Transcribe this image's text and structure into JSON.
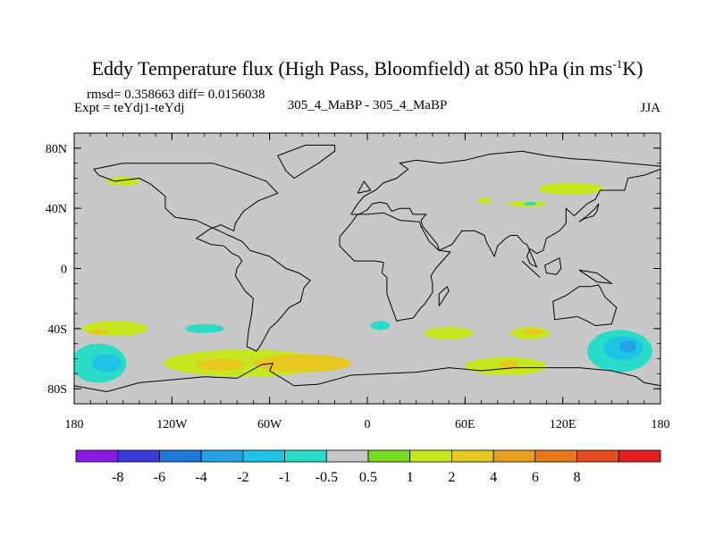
{
  "chart_data": {
    "type": "heatmap",
    "title": "Eddy Temperature flux (High Pass, Bloomfield) at 850 hPa (in ms",
    "title_sup": "-1",
    "title_end": "K)",
    "stats": "rmsd= 0.358663 diff= 0.0156038",
    "expt": "Expt = teYdj1-teYdj",
    "center_label": "305_4_MaBP - 305_4_MaBP",
    "season": "JJA",
    "x_range": [
      -180,
      180
    ],
    "y_range": [
      -90,
      90
    ],
    "x_ticks": [
      {
        "value": -180,
        "label": "180"
      },
      {
        "value": -120,
        "label": "120W"
      },
      {
        "value": -60,
        "label": "60W"
      },
      {
        "value": 0,
        "label": "0"
      },
      {
        "value": 60,
        "label": "60E"
      },
      {
        "value": 120,
        "label": "120E"
      },
      {
        "value": 180,
        "label": "180"
      }
    ],
    "y_ticks": [
      {
        "value": 80,
        "label": "80N"
      },
      {
        "value": 40,
        "label": "40N"
      },
      {
        "value": 0,
        "label": "0"
      },
      {
        "value": -40,
        "label": "40S"
      },
      {
        "value": -80,
        "label": "80S"
      }
    ],
    "colorbar": {
      "colors": [
        "#8b1ae6",
        "#3c3cdc",
        "#1e78dc",
        "#28a0e6",
        "#1ec3e6",
        "#28dcc8",
        "#c8c8c8",
        "#78dc1e",
        "#c8e61e",
        "#e6c81e",
        "#e6a01e",
        "#e6781e",
        "#e64b1e",
        "#e61e1e"
      ],
      "labels": [
        "-8",
        "-6",
        "-4",
        "-2",
        "-1",
        "-0.5",
        "0.5",
        "1",
        "2",
        "4",
        "6",
        "8"
      ]
    },
    "anomaly_regions": [
      {
        "lon": -150,
        "lat": 58,
        "rlon": 10,
        "rlat": 3,
        "level": "1"
      },
      {
        "lon": 125,
        "lat": 53,
        "rlon": 20,
        "rlat": 4,
        "level": "1"
      },
      {
        "lon": 98,
        "lat": 43,
        "rlon": 12,
        "rlat": 2,
        "level": "1"
      },
      {
        "lon": 72,
        "lat": 45,
        "rlon": 4,
        "rlat": 2,
        "level": "1"
      },
      {
        "lon": 100,
        "lat": 43,
        "rlon": 4,
        "rlat": 1.2,
        "level": "-0.5"
      },
      {
        "lon": 8,
        "lat": -38,
        "rlon": 6,
        "rlat": 3,
        "level": "-0.5"
      },
      {
        "lon": -100,
        "lat": -40,
        "rlon": 12,
        "rlat": 3,
        "level": "-0.5"
      },
      {
        "lon": -155,
        "lat": -40,
        "rlon": 20,
        "rlat": 5,
        "level": "1"
      },
      {
        "lon": -165,
        "lat": -42,
        "rlon": 6,
        "rlat": 2,
        "level": "2"
      },
      {
        "lon": 50,
        "lat": -43,
        "rlon": 15,
        "rlat": 4,
        "level": "1"
      },
      {
        "lon": 100,
        "lat": -43,
        "rlon": 12,
        "rlat": 4,
        "level": "1"
      },
      {
        "lon": 102,
        "lat": -42,
        "rlon": 6,
        "rlat": 2,
        "level": "2"
      },
      {
        "lon": -75,
        "lat": -63,
        "rlon": 50,
        "rlat": 9,
        "level": "1"
      },
      {
        "lon": -40,
        "lat": -63,
        "rlon": 30,
        "rlat": 6,
        "level": "2"
      },
      {
        "lon": -90,
        "lat": -64,
        "rlon": 15,
        "rlat": 4,
        "level": "2"
      },
      {
        "lon": 85,
        "lat": -65,
        "rlon": 25,
        "rlat": 6,
        "level": "1"
      },
      {
        "lon": 87,
        "lat": -64,
        "rlon": 6,
        "rlat": 3,
        "level": "2"
      },
      {
        "lon": -165,
        "lat": -63,
        "rlon": 17,
        "rlat": 13,
        "level": "-0.5"
      },
      {
        "lon": -160,
        "lat": -63,
        "rlon": 9,
        "rlat": 6,
        "level": "-1"
      },
      {
        "lon": 155,
        "lat": -55,
        "rlon": 20,
        "rlat": 14,
        "level": "-0.5"
      },
      {
        "lon": 157,
        "lat": -53,
        "rlon": 12,
        "rlat": 8,
        "level": "-1"
      },
      {
        "lon": 160,
        "lat": -52,
        "rlon": 5,
        "rlat": 4,
        "level": "-2"
      }
    ],
    "coastlines": [
      [
        [
          -38,
          82
        ],
        [
          -20,
          82
        ],
        [
          -20,
          78
        ],
        [
          -30,
          70
        ],
        [
          -45,
          60
        ],
        [
          -50,
          65
        ],
        [
          -55,
          75
        ],
        [
          -38,
          82
        ]
      ],
      [
        [
          -168,
          66
        ],
        [
          -150,
          70
        ],
        [
          -120,
          70
        ],
        [
          -95,
          70
        ],
        [
          -80,
          65
        ],
        [
          -62,
          58
        ],
        [
          -55,
          50
        ],
        [
          -67,
          45
        ],
        [
          -76,
          38
        ],
        [
          -81,
          30
        ],
        [
          -82,
          25
        ],
        [
          -90,
          29
        ],
        [
          -97,
          26
        ],
        [
          -105,
          20
        ],
        [
          -96,
          16
        ],
        [
          -88,
          15
        ],
        [
          -83,
          10
        ],
        [
          -79,
          8
        ],
        [
          -77,
          5
        ],
        [
          -80,
          0
        ],
        [
          -81,
          -5
        ],
        [
          -75,
          -15
        ],
        [
          -70,
          -20
        ],
        [
          -71,
          -30
        ],
        [
          -73,
          -42
        ],
        [
          -74,
          -52
        ],
        [
          -68,
          -55
        ],
        [
          -65,
          -50
        ],
        [
          -60,
          -40
        ],
        [
          -55,
          -35
        ],
        [
          -48,
          -26
        ],
        [
          -41,
          -22
        ],
        [
          -39,
          -13
        ],
        [
          -35,
          -8
        ],
        [
          -42,
          -3
        ],
        [
          -50,
          0
        ],
        [
          -60,
          8
        ],
        [
          -72,
          12
        ],
        [
          -77,
          18
        ],
        [
          -85,
          22
        ],
        [
          -97,
          28
        ],
        [
          -105,
          32
        ],
        [
          -118,
          34
        ],
        [
          -124,
          40
        ],
        [
          -124,
          48
        ],
        [
          -133,
          56
        ],
        [
          -140,
          60
        ],
        [
          -155,
          58
        ],
        [
          -165,
          62
        ],
        [
          -168,
          66
        ]
      ],
      [
        [
          -10,
          36
        ],
        [
          -6,
          43
        ],
        [
          -2,
          48
        ],
        [
          5,
          52
        ],
        [
          10,
          57
        ],
        [
          18,
          60
        ],
        [
          25,
          66
        ],
        [
          20,
          70
        ],
        [
          30,
          72
        ],
        [
          45,
          70
        ],
        [
          60,
          72
        ],
        [
          75,
          76
        ],
        [
          95,
          78
        ],
        [
          110,
          75
        ],
        [
          125,
          73
        ],
        [
          140,
          72
        ],
        [
          160,
          70
        ],
        [
          180,
          68
        ],
        [
          180,
          66
        ],
        [
          170,
          62
        ],
        [
          160,
          60
        ],
        [
          158,
          52
        ],
        [
          143,
          52
        ],
        [
          140,
          46
        ],
        [
          135,
          43
        ],
        [
          130,
          38
        ],
        [
          127,
          35
        ],
        [
          122,
          40
        ],
        [
          122,
          30
        ],
        [
          118,
          25
        ],
        [
          110,
          20
        ],
        [
          108,
          12
        ],
        [
          104,
          10
        ],
        [
          100,
          13
        ],
        [
          98,
          8
        ],
        [
          100,
          3
        ],
        [
          104,
          1
        ],
        [
          98,
          16
        ],
        [
          96,
          17
        ],
        [
          92,
          22
        ],
        [
          88,
          22
        ],
        [
          85,
          20
        ],
        [
          80,
          15
        ],
        [
          78,
          8
        ],
        [
          73,
          18
        ],
        [
          72,
          22
        ],
        [
          66,
          25
        ],
        [
          58,
          25
        ],
        [
          56,
          22
        ],
        [
          52,
          16
        ],
        [
          44,
          12
        ],
        [
          43,
          16
        ],
        [
          40,
          20
        ],
        [
          34,
          28
        ],
        [
          33,
          32
        ],
        [
          36,
          36
        ],
        [
          28,
          36
        ],
        [
          26,
          40
        ],
        [
          20,
          40
        ],
        [
          15,
          38
        ],
        [
          12,
          43
        ],
        [
          8,
          44
        ],
        [
          3,
          43
        ],
        [
          0,
          39
        ],
        [
          -5,
          36
        ],
        [
          -10,
          36
        ]
      ],
      [
        [
          -17,
          21
        ],
        [
          -17,
          15
        ],
        [
          -8,
          5
        ],
        [
          5,
          5
        ],
        [
          10,
          4
        ],
        [
          9,
          -3
        ],
        [
          12,
          -6
        ],
        [
          12,
          -17
        ],
        [
          14,
          -23
        ],
        [
          18,
          -35
        ],
        [
          22,
          -34
        ],
        [
          28,
          -33
        ],
        [
          33,
          -26
        ],
        [
          35,
          -24
        ],
        [
          40,
          -16
        ],
        [
          40,
          -10
        ],
        [
          39,
          -5
        ],
        [
          42,
          0
        ],
        [
          51,
          11
        ],
        [
          44,
          12
        ],
        [
          38,
          18
        ],
        [
          33,
          28
        ],
        [
          32,
          31
        ],
        [
          20,
          32
        ],
        [
          10,
          37
        ],
        [
          0,
          36
        ],
        [
          -6,
          36
        ],
        [
          -10,
          30
        ],
        [
          -17,
          21
        ]
      ],
      [
        [
          44,
          -25
        ],
        [
          50,
          -15
        ],
        [
          49,
          -12
        ],
        [
          44,
          -17
        ],
        [
          44,
          -25
        ]
      ],
      [
        [
          114,
          -22
        ],
        [
          122,
          -18
        ],
        [
          130,
          -12
        ],
        [
          137,
          -12
        ],
        [
          142,
          -11
        ],
        [
          146,
          -19
        ],
        [
          153,
          -26
        ],
        [
          150,
          -37
        ],
        [
          140,
          -38
        ],
        [
          135,
          -35
        ],
        [
          129,
          -32
        ],
        [
          115,
          -34
        ],
        [
          114,
          -22
        ]
      ],
      [
        [
          95,
          5
        ],
        [
          105,
          -5
        ],
        [
          106,
          -6
        ],
        [
          100,
          0
        ],
        [
          95,
          5
        ]
      ],
      [
        [
          109,
          2
        ],
        [
          118,
          7
        ],
        [
          119,
          0
        ],
        [
          116,
          -4
        ],
        [
          110,
          -3
        ],
        [
          109,
          2
        ]
      ],
      [
        [
          130,
          -1
        ],
        [
          141,
          -3
        ],
        [
          150,
          -10
        ],
        [
          141,
          -9
        ],
        [
          134,
          -4
        ],
        [
          130,
          -1
        ]
      ],
      [
        [
          130,
          31
        ],
        [
          135,
          35
        ],
        [
          140,
          40
        ],
        [
          142,
          43
        ],
        [
          141,
          38
        ],
        [
          139,
          35
        ],
        [
          133,
          33
        ],
        [
          130,
          31
        ]
      ],
      [
        [
          -6,
          50
        ],
        [
          -2,
          58
        ],
        [
          2,
          52
        ],
        [
          -6,
          50
        ]
      ],
      [
        [
          -180,
          -78
        ],
        [
          -160,
          -82
        ],
        [
          -140,
          -76
        ],
        [
          -120,
          -74
        ],
        [
          -100,
          -72
        ],
        [
          -80,
          -73
        ],
        [
          -65,
          -64
        ],
        [
          -58,
          -63
        ],
        [
          -60,
          -68
        ],
        [
          -45,
          -78
        ],
        [
          -30,
          -77
        ],
        [
          -10,
          -71
        ],
        [
          10,
          -70
        ],
        [
          30,
          -69
        ],
        [
          50,
          -66
        ],
        [
          70,
          -68
        ],
        [
          90,
          -66
        ],
        [
          110,
          -66
        ],
        [
          130,
          -66
        ],
        [
          150,
          -68
        ],
        [
          165,
          -72
        ],
        [
          170,
          -76
        ],
        [
          180,
          -78
        ]
      ]
    ]
  }
}
